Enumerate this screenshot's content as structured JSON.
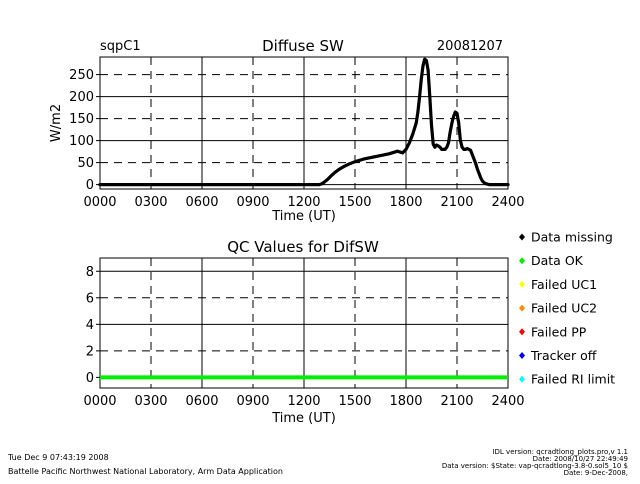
{
  "header": {
    "site": "sqpC1",
    "date": "20081207"
  },
  "chart_data": [
    {
      "type": "scatter",
      "title": "Diffuse SW",
      "xlabel": "Time (UT)",
      "ylabel": "W/m2",
      "xlim": [
        0,
        2400
      ],
      "ylim": [
        -10,
        290
      ],
      "x_ticks": [
        "0000",
        "0300",
        "0600",
        "0900",
        "1200",
        "1500",
        "1800",
        "2100",
        "2400"
      ],
      "y_ticks": [
        "0",
        "50",
        "100",
        "150",
        "200",
        "250"
      ],
      "grid": true,
      "series": [
        {
          "name": "Diffuse SW",
          "x": [
            0,
            1290,
            1305,
            1320,
            1340,
            1360,
            1380,
            1400,
            1420,
            1440,
            1460,
            1500,
            1550,
            1600,
            1650,
            1700,
            1750,
            1780,
            1800,
            1820,
            1840,
            1860,
            1870,
            1880,
            1890,
            1900,
            1910,
            1920,
            1930,
            1940,
            1950,
            1960,
            1970,
            1980,
            1990,
            2000,
            2010,
            2020,
            2030,
            2040,
            2050,
            2060,
            2070,
            2080,
            2090,
            2100,
            2110,
            2120,
            2130,
            2140,
            2150,
            2160,
            2170,
            2180,
            2190,
            2200,
            2210,
            2220,
            2230,
            2240,
            2250,
            2260,
            2270,
            2280,
            2290,
            2300,
            2310,
            2320,
            2330,
            2340,
            2400
          ],
          "y": [
            0,
            0,
            2,
            6,
            12,
            20,
            27,
            33,
            38,
            42,
            46,
            52,
            58,
            62,
            66,
            70,
            76,
            72,
            80,
            95,
            115,
            140,
            165,
            200,
            240,
            270,
            285,
            282,
            260,
            200,
            135,
            92,
            85,
            90,
            88,
            85,
            80,
            80,
            80,
            85,
            95,
            120,
            140,
            155,
            165,
            162,
            140,
            100,
            85,
            80,
            80,
            82,
            80,
            78,
            68,
            58,
            48,
            35,
            25,
            15,
            8,
            4,
            2,
            1,
            0,
            0,
            0,
            0,
            0,
            0,
            0
          ]
        }
      ]
    },
    {
      "type": "scatter",
      "title": "QC Values for DifSW",
      "xlabel": "Time (UT)",
      "xlim": [
        0,
        2400
      ],
      "ylim": [
        -0.8,
        9
      ],
      "x_ticks": [
        "0000",
        "0300",
        "0600",
        "0900",
        "1200",
        "1500",
        "1800",
        "2100",
        "2400"
      ],
      "y_ticks": [
        "0",
        "2",
        "4",
        "6",
        "8"
      ],
      "grid": true,
      "series": [
        {
          "name": "Data OK",
          "x": [
            0,
            2400
          ],
          "y": [
            0,
            0
          ],
          "color": "#00ee00"
        }
      ],
      "legend": [
        {
          "label": "Data missing",
          "color": "#000000"
        },
        {
          "label": "Data OK",
          "color": "#00ee00"
        },
        {
          "label": "Failed UC1",
          "color": "#ffff00"
        },
        {
          "label": "Failed UC2",
          "color": "#ff8c00"
        },
        {
          "label": "Failed PP",
          "color": "#ff0000"
        },
        {
          "label": "Tracker off",
          "color": "#0000ff"
        },
        {
          "label": "Failed RI limit",
          "color": "#00ffff"
        }
      ]
    }
  ],
  "footer": {
    "timestamp": "Tue Dec  9 07:43:19 2008",
    "lab": "Battelle Pacific Northwest National Laboratory, Arm Data Application",
    "idl_version": "IDL version: qcradtlong_plots.pro,v 1.1",
    "idl_date": "Date: 2008/10/27 22:49:49",
    "data_version": "Data version: $State: vap-qcradtlong-3.8-0.sol5_10 $",
    "data_date": "Date: 9-Dec-2008,"
  }
}
